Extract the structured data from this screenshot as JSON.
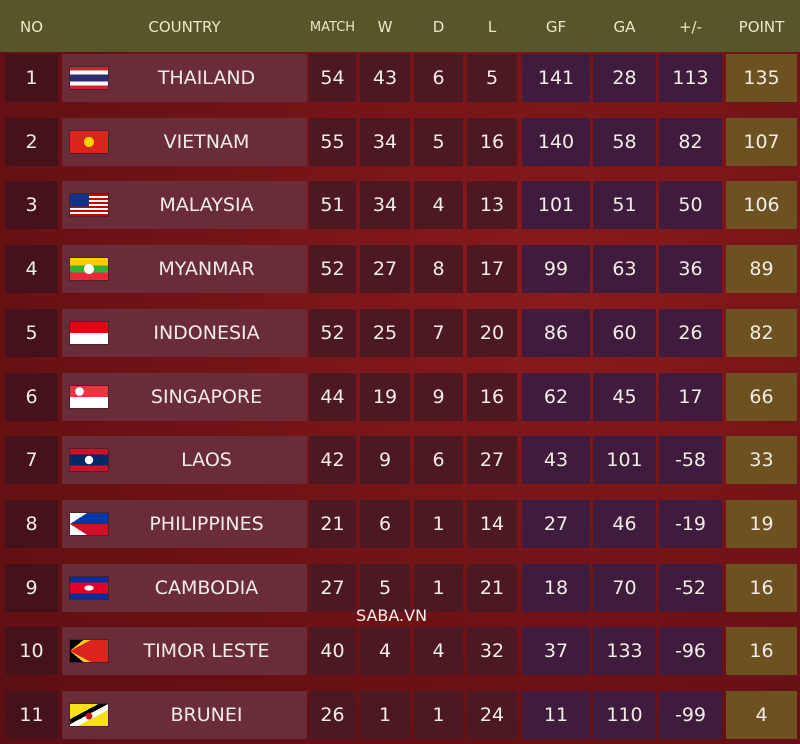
{
  "table": {
    "header": [
      "NO",
      "COUNTRY",
      "MATCH",
      "W",
      "D",
      "L",
      "GF",
      "GA",
      "+/-",
      "POINT"
    ],
    "rows": [
      [
        1,
        "THAILAND",
        54,
        43,
        6,
        5,
        141,
        28,
        113,
        135
      ],
      [
        2,
        "VIETNAM",
        55,
        34,
        5,
        16,
        140,
        58,
        82,
        107
      ],
      [
        3,
        "MALAYSIA",
        51,
        34,
        4,
        13,
        101,
        51,
        50,
        106
      ],
      [
        4,
        "MYANMAR",
        52,
        27,
        8,
        17,
        99,
        63,
        36,
        89
      ],
      [
        5,
        "INDONESIA",
        52,
        25,
        7,
        20,
        86,
        60,
        26,
        82
      ],
      [
        6,
        "SINGAPORE",
        44,
        19,
        9,
        16,
        62,
        45,
        17,
        66
      ],
      [
        7,
        "LAOS",
        42,
        9,
        6,
        27,
        43,
        101,
        -58,
        33
      ],
      [
        8,
        "PHILIPPINES",
        21,
        6,
        1,
        14,
        27,
        46,
        -19,
        19
      ],
      [
        9,
        "CAMBODIA",
        27,
        5,
        1,
        21,
        18,
        70,
        -52,
        16
      ],
      [
        10,
        "TIMOR LESTE",
        40,
        4,
        4,
        32,
        37,
        133,
        -96,
        16
      ],
      [
        11,
        "BRUNEI",
        26,
        1,
        1,
        24,
        11,
        110,
        -99,
        4
      ]
    ]
  },
  "watermark": "SABA.VN"
}
